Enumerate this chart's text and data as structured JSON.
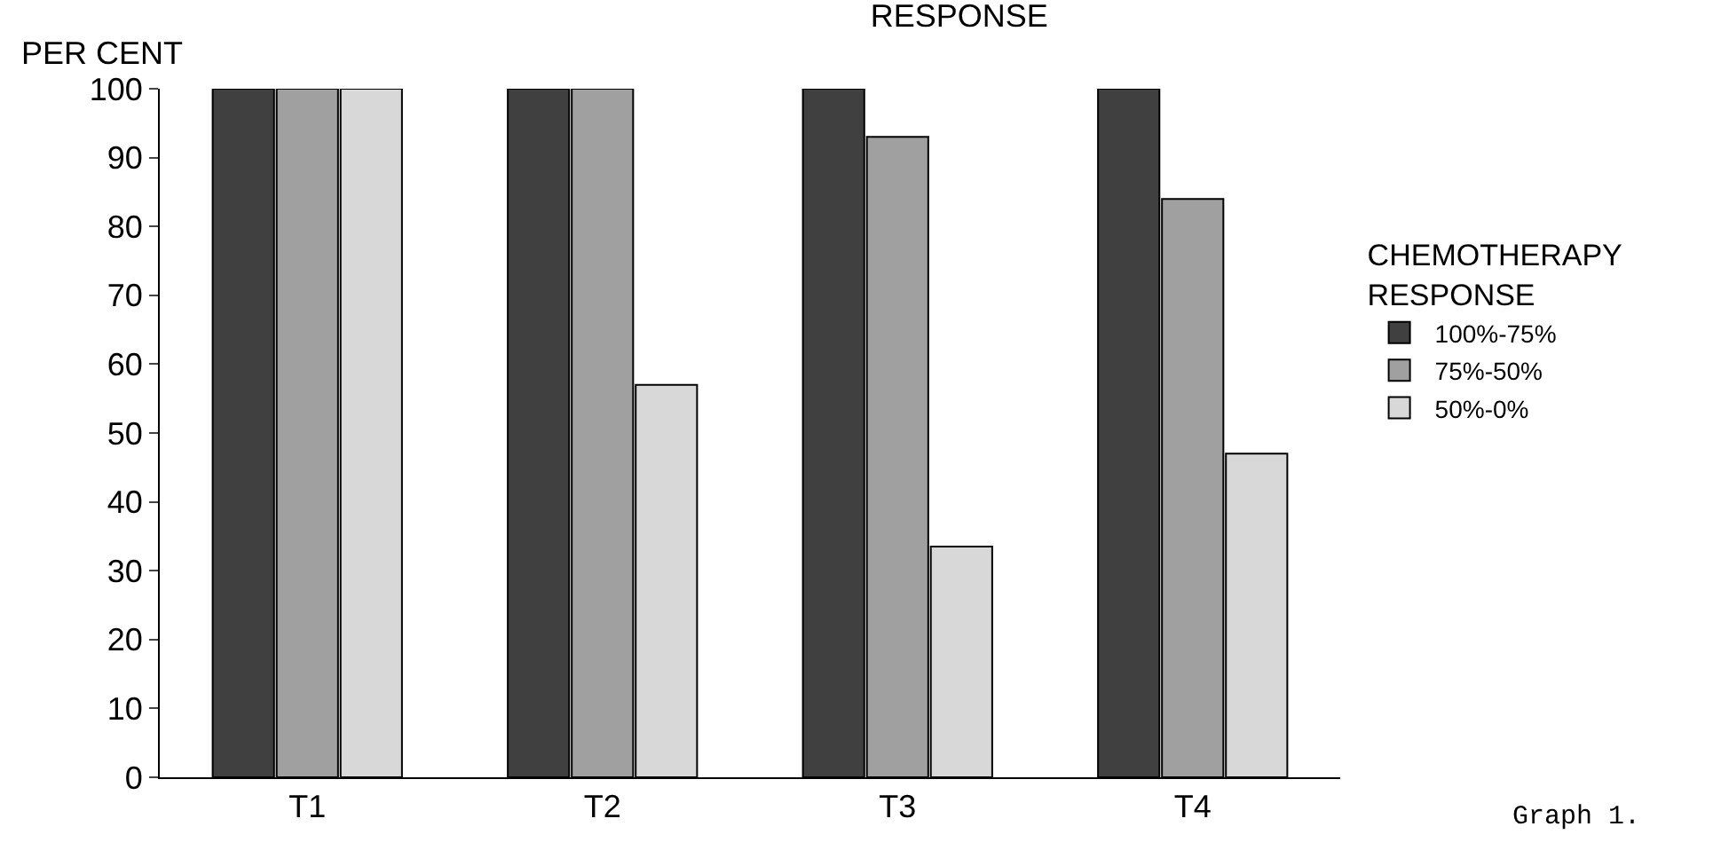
{
  "chart_data": {
    "type": "bar",
    "title": "RESPONSE",
    "ylabel": "PER CENT",
    "legend_title": "CHEMOTHERAPY RESPONSE",
    "categories": [
      "T1",
      "T2",
      "T3",
      "T4"
    ],
    "series": [
      {
        "name": "100%-75%",
        "color": "#404040",
        "values": [
          100,
          100,
          100,
          100
        ]
      },
      {
        "name": "75%-50%",
        "color": "#a0a0a0",
        "values": [
          100,
          100,
          93,
          84
        ]
      },
      {
        "name": "50%-0%",
        "color": "#d8d8d8",
        "values": [
          100,
          57,
          33.5,
          47
        ]
      }
    ],
    "ylim": [
      0,
      100
    ],
    "yticks": [
      0,
      10,
      20,
      30,
      40,
      50,
      60,
      70,
      80,
      90,
      100
    ],
    "legend": "right",
    "annotations": [
      "Graph 1."
    ]
  }
}
